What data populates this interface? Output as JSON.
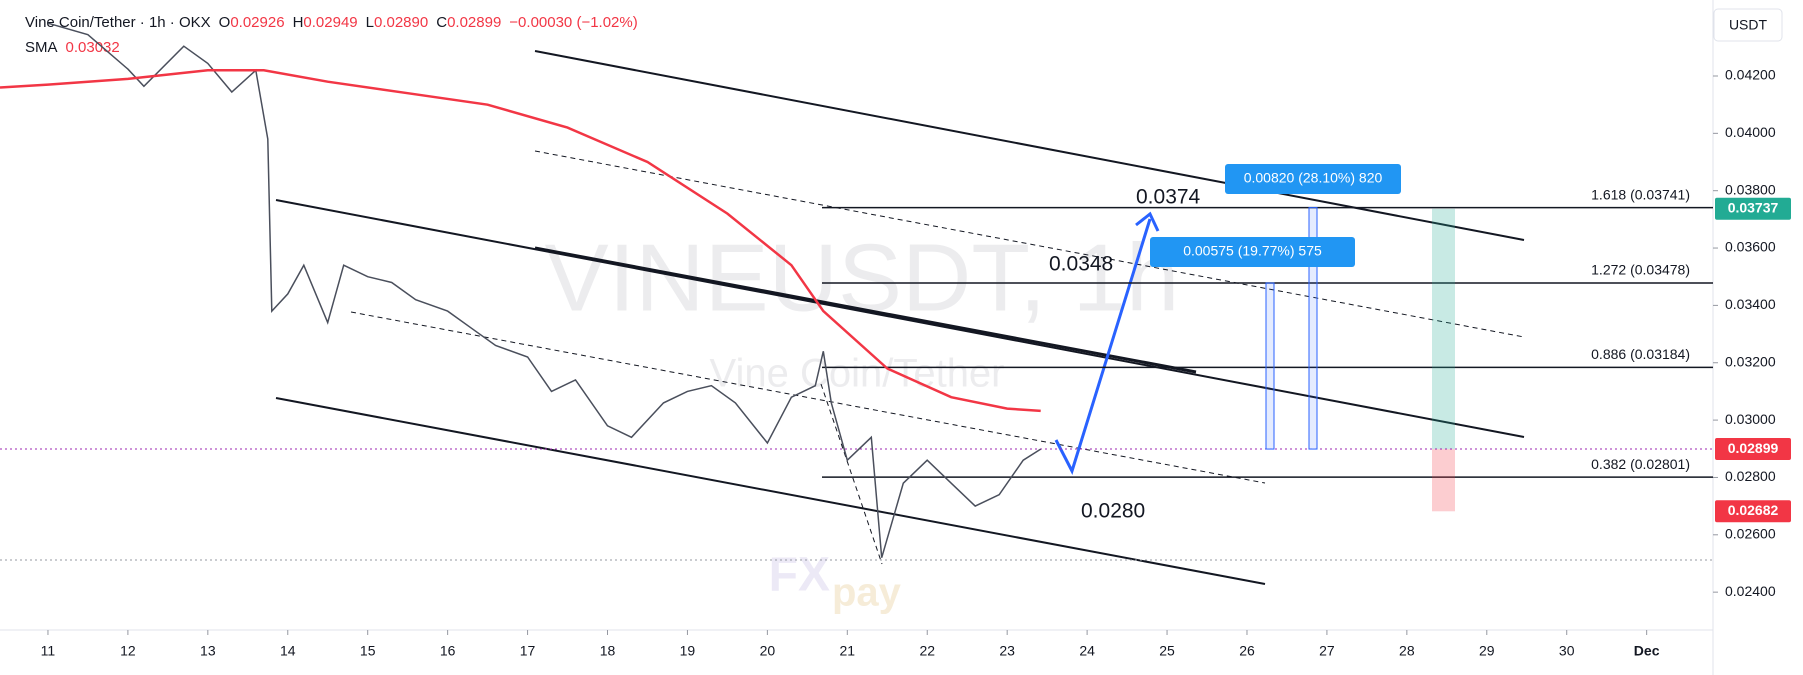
{
  "header": {
    "symbol": "Vine Coin/Tether · 1h · OKX",
    "ohlc": [
      {
        "label": "O",
        "value": "0.02926"
      },
      {
        "label": "H",
        "value": "0.02949"
      },
      {
        "label": "L",
        "value": "0.02890"
      },
      {
        "label": "C",
        "value": "0.02899"
      }
    ],
    "change": "−0.00030 (−1.02%)",
    "sma_label": "SMA",
    "sma_value": "0.03032",
    "currency": "USDT"
  },
  "watermark": {
    "title": "VINEUSDT, 1h",
    "subtitle": "Vine Coin/Tether",
    "logo": [
      "FX",
      "pay"
    ]
  },
  "chart_data": {
    "type": "line",
    "series": [
      {
        "name": "Vine Coin/Tether",
        "color": "#4a4f5c",
        "x": [
          11.0,
          11.5,
          12.0,
          12.2,
          12.7,
          13.0,
          13.3,
          13.6,
          13.75,
          13.8,
          14.0,
          14.2,
          14.5,
          14.7,
          15.0,
          15.3,
          15.6,
          16.0,
          16.3,
          16.6,
          17.0,
          17.3,
          17.6,
          18.0,
          18.3,
          18.7,
          19.0,
          19.3,
          19.6,
          20.0,
          20.3,
          20.6,
          20.7,
          20.8,
          21.0,
          21.3,
          21.43,
          21.7,
          22.0,
          22.3,
          22.6,
          22.9,
          23.2,
          23.42
        ],
        "values": [
          0.04384,
          0.04344,
          0.04224,
          0.04164,
          0.04304,
          0.04244,
          0.04144,
          0.0422,
          0.0398,
          0.0338,
          0.0344,
          0.0354,
          0.0334,
          0.0354,
          0.035,
          0.0348,
          0.0342,
          0.0338,
          0.0332,
          0.0326,
          0.0322,
          0.031,
          0.0314,
          0.0298,
          0.0294,
          0.0306,
          0.031,
          0.0312,
          0.0306,
          0.0292,
          0.0308,
          0.0312,
          0.0324,
          0.0306,
          0.0286,
          0.0294,
          0.0252,
          0.0278,
          0.0286,
          0.0278,
          0.027,
          0.0274,
          0.0286,
          0.02899
        ]
      },
      {
        "name": "SMA",
        "color": "#f23645",
        "x": [
          10.4,
          11.0,
          12.0,
          13.0,
          13.7,
          14.5,
          15.5,
          16.5,
          17.5,
          18.5,
          19.5,
          20.3,
          20.7,
          21.5,
          22.3,
          23.0,
          23.42
        ],
        "values": [
          0.0416,
          0.0417,
          0.0419,
          0.0422,
          0.0422,
          0.0418,
          0.0414,
          0.041,
          0.0402,
          0.039,
          0.0372,
          0.0354,
          0.0338,
          0.0318,
          0.0308,
          0.0304,
          0.03032
        ]
      }
    ],
    "xlim": [
      10.4,
      31.83
    ],
    "xticks": [
      11,
      12,
      13,
      14,
      15,
      16,
      17,
      18,
      19,
      20,
      21,
      22,
      23,
      24,
      25,
      26,
      27,
      28,
      29,
      30,
      {
        "value": 31,
        "label": "Dec"
      }
    ],
    "ylim": [
      0.02268,
      0.04465
    ],
    "yticks": [
      {
        "value": 0.024,
        "label": "0.02400"
      },
      {
        "value": 0.026,
        "label": "0.02600"
      },
      {
        "value": 0.028,
        "label": "0.02800"
      },
      {
        "value": 0.03,
        "label": "0.03000"
      },
      {
        "value": 0.032,
        "label": "0.03200"
      },
      {
        "value": 0.034,
        "label": "0.03400"
      },
      {
        "value": 0.036,
        "label": "0.03600"
      },
      {
        "value": 0.038,
        "label": "0.03800"
      },
      {
        "value": 0.04,
        "label": "0.04000"
      },
      {
        "value": 0.042,
        "label": "0.04200"
      }
    ],
    "fib_levels": [
      {
        "value": 0.03741,
        "label": "1.618 (0.03741)"
      },
      {
        "value": 0.03478,
        "label": "1.272 (0.03478)"
      },
      {
        "value": 0.03184,
        "label": "0.886 (0.03184)"
      },
      {
        "value": 0.02801,
        "label": "0.382 (0.02801)"
      }
    ],
    "annotations": [
      "0.0374",
      "0.0348",
      "0.0280"
    ],
    "measurements": [
      "0.00820 (28.10%) 820",
      "0.00575 (19.77%) 575"
    ],
    "price_labels": [
      {
        "value": 0.03737,
        "label": "0.03737",
        "color": "#22ab94"
      },
      {
        "value": 0.02899,
        "label": "0.02899",
        "color": "#f23645"
      },
      {
        "value": 0.02682,
        "label": "0.02682",
        "color": "#f23645"
      }
    ]
  }
}
